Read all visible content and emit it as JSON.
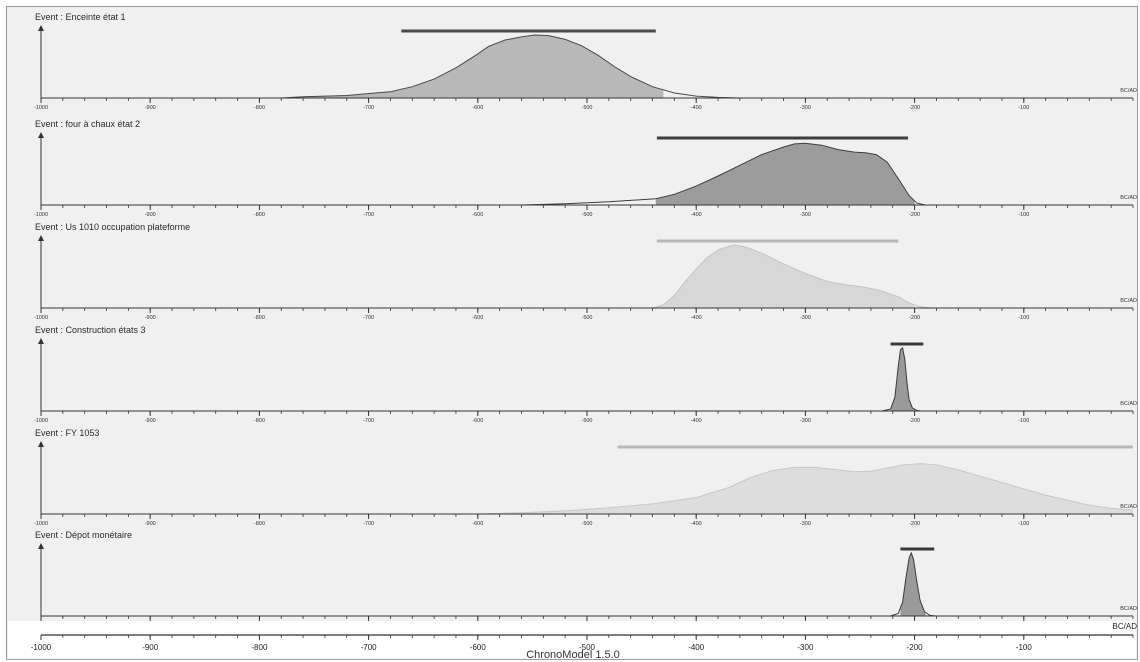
{
  "app": {
    "footer": "ChronoModel 1.5.0"
  },
  "chart_data": {
    "type": "area",
    "xlim": [
      -1000,
      0
    ],
    "x_ticks": [
      -1000,
      -900,
      -800,
      -700,
      -600,
      -500,
      -400,
      -300,
      -200,
      -100
    ],
    "x_tick_labels": [
      "-1000",
      "-900",
      "-800",
      "-700",
      "-600",
      "-500",
      "-400",
      "-300",
      "-200",
      "-100"
    ],
    "unit_label": "BC/AD",
    "panels": [
      {
        "title": "Event : Enceinte état 1",
        "fill_color": "#b8b8b8",
        "line_color": "#4a4a4a",
        "interval_color": "#4a4a4a",
        "interval": [
          -670,
          -437
        ],
        "shade_range": [
          -760,
          -430
        ],
        "density": [
          [
            -780,
            0
          ],
          [
            -760,
            0.02
          ],
          [
            -720,
            0.04
          ],
          [
            -680,
            0.1
          ],
          [
            -660,
            0.18
          ],
          [
            -640,
            0.3
          ],
          [
            -620,
            0.48
          ],
          [
            -600,
            0.7
          ],
          [
            -590,
            0.82
          ],
          [
            -575,
            0.92
          ],
          [
            -560,
            0.97
          ],
          [
            -548,
            1.0
          ],
          [
            -535,
            0.99
          ],
          [
            -520,
            0.93
          ],
          [
            -505,
            0.83
          ],
          [
            -490,
            0.68
          ],
          [
            -475,
            0.5
          ],
          [
            -460,
            0.34
          ],
          [
            -440,
            0.18
          ],
          [
            -420,
            0.08
          ],
          [
            -400,
            0.03
          ],
          [
            -380,
            0.01
          ],
          [
            -360,
            0
          ]
        ]
      },
      {
        "title": "Event : four à chaux état 2",
        "fill_color": "#9c9c9c",
        "line_color": "#3e3e3e",
        "interval_color": "#3e3e3e",
        "interval": [
          -436,
          -206
        ],
        "shade_range": [
          -437,
          -200
        ],
        "density": [
          [
            -560,
            0
          ],
          [
            -520,
            0.02
          ],
          [
            -480,
            0.05
          ],
          [
            -437,
            0.1
          ],
          [
            -420,
            0.17
          ],
          [
            -400,
            0.3
          ],
          [
            -380,
            0.46
          ],
          [
            -360,
            0.63
          ],
          [
            -340,
            0.8
          ],
          [
            -320,
            0.92
          ],
          [
            -310,
            0.97
          ],
          [
            -300,
            0.98
          ],
          [
            -285,
            0.95
          ],
          [
            -270,
            0.88
          ],
          [
            -255,
            0.84
          ],
          [
            -245,
            0.83
          ],
          [
            -235,
            0.8
          ],
          [
            -225,
            0.68
          ],
          [
            -215,
            0.42
          ],
          [
            -205,
            0.15
          ],
          [
            -198,
            0.03
          ],
          [
            -190,
            0
          ]
        ]
      },
      {
        "title": "Event : Us 1010 occupation plateforme",
        "fill_color": "#d7d7d7",
        "line_color": "#c4c4c4",
        "interval_color": "#b8b8b8",
        "interval": [
          -436,
          -215
        ],
        "shade_range": [
          -440,
          -200
        ],
        "density": [
          [
            -440,
            0
          ],
          [
            -430,
            0.05
          ],
          [
            -420,
            0.2
          ],
          [
            -410,
            0.42
          ],
          [
            -400,
            0.62
          ],
          [
            -390,
            0.8
          ],
          [
            -380,
            0.92
          ],
          [
            -370,
            0.98
          ],
          [
            -365,
            1.0
          ],
          [
            -355,
            0.97
          ],
          [
            -340,
            0.87
          ],
          [
            -320,
            0.7
          ],
          [
            -300,
            0.55
          ],
          [
            -280,
            0.42
          ],
          [
            -260,
            0.36
          ],
          [
            -245,
            0.33
          ],
          [
            -230,
            0.27
          ],
          [
            -215,
            0.18
          ],
          [
            -205,
            0.08
          ],
          [
            -195,
            0.02
          ],
          [
            -185,
            0
          ]
        ]
      },
      {
        "title": "Event : Construction états 3",
        "fill_color": "#9a9a9a",
        "line_color": "#3a3a3a",
        "interval_color": "#3a3a3a",
        "interval": [
          -222,
          -192
        ],
        "shade_range": [
          -222,
          -200
        ],
        "density": [
          [
            -230,
            0
          ],
          [
            -222,
            0.03
          ],
          [
            -218,
            0.22
          ],
          [
            -215,
            0.7
          ],
          [
            -213,
            0.97
          ],
          [
            -211,
            1.0
          ],
          [
            -209,
            0.82
          ],
          [
            -207,
            0.45
          ],
          [
            -205,
            0.18
          ],
          [
            -202,
            0.05
          ],
          [
            -198,
            0.01
          ],
          [
            -194,
            0
          ]
        ]
      },
      {
        "title": "Event : FY 1053",
        "fill_color": "#dddddd",
        "line_color": "#c8c8c8",
        "interval_color": "#b8b8b8",
        "interval": [
          -472,
          0
        ],
        "shade_range": [
          -560,
          0
        ],
        "density": [
          [
            -600,
            0
          ],
          [
            -560,
            0.02
          ],
          [
            -520,
            0.05
          ],
          [
            -480,
            0.1
          ],
          [
            -440,
            0.16
          ],
          [
            -400,
            0.26
          ],
          [
            -370,
            0.42
          ],
          [
            -350,
            0.58
          ],
          [
            -330,
            0.69
          ],
          [
            -310,
            0.74
          ],
          [
            -290,
            0.74
          ],
          [
            -270,
            0.7
          ],
          [
            -255,
            0.67
          ],
          [
            -240,
            0.68
          ],
          [
            -225,
            0.73
          ],
          [
            -210,
            0.78
          ],
          [
            -195,
            0.8
          ],
          [
            -180,
            0.78
          ],
          [
            -160,
            0.7
          ],
          [
            -140,
            0.6
          ],
          [
            -120,
            0.5
          ],
          [
            -100,
            0.4
          ],
          [
            -80,
            0.3
          ],
          [
            -60,
            0.22
          ],
          [
            -40,
            0.14
          ],
          [
            -20,
            0.09
          ],
          [
            0,
            0.06
          ]
        ]
      },
      {
        "title": "Event : Dépot monétaire",
        "fill_color": "#9a9a9a",
        "line_color": "#3a3a3a",
        "interval_color": "#3a3a3a",
        "interval": [
          -213,
          -182
        ],
        "shade_range": [
          -213,
          -190
        ],
        "density": [
          [
            -222,
            0
          ],
          [
            -215,
            0.04
          ],
          [
            -211,
            0.22
          ],
          [
            -208,
            0.6
          ],
          [
            -205,
            0.92
          ],
          [
            -203,
            1.0
          ],
          [
            -201,
            0.9
          ],
          [
            -198,
            0.55
          ],
          [
            -195,
            0.25
          ],
          [
            -191,
            0.07
          ],
          [
            -186,
            0.01
          ],
          [
            -180,
            0
          ]
        ]
      }
    ]
  }
}
